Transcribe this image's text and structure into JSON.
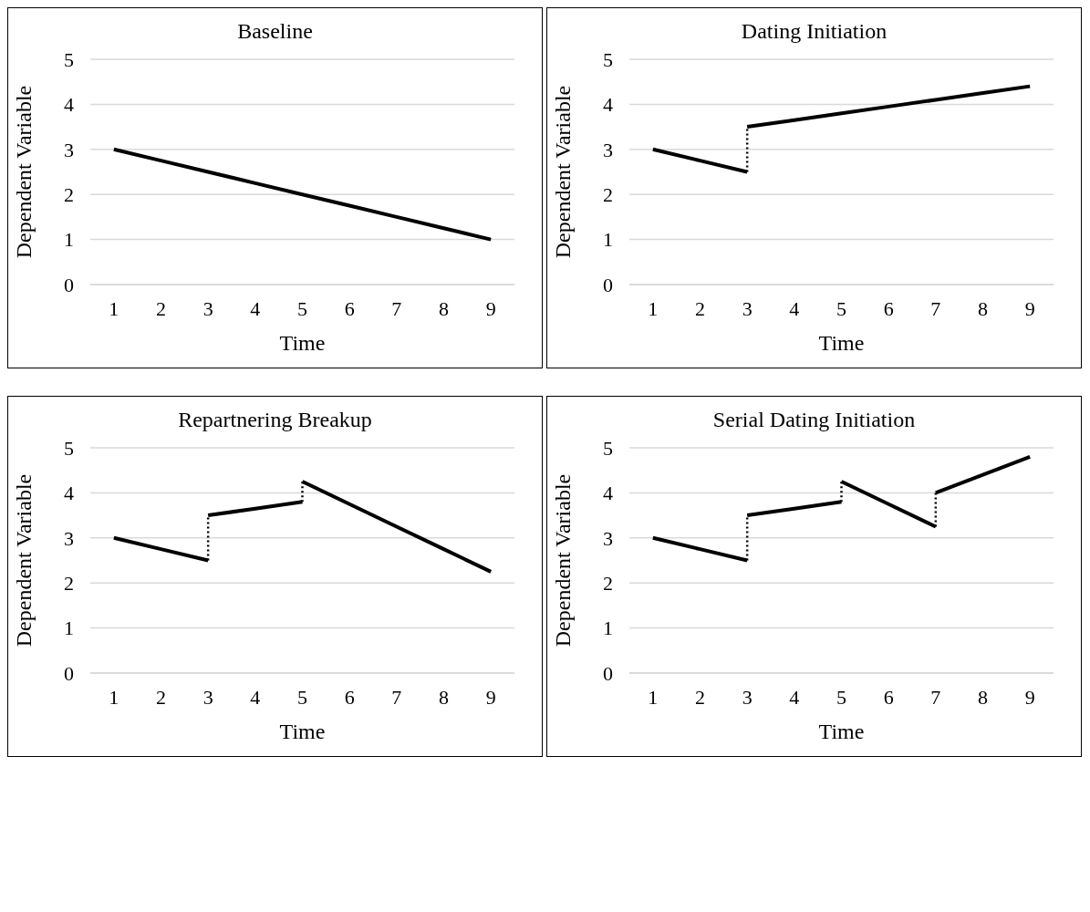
{
  "chart_data": [
    {
      "type": "line",
      "title": "Baseline",
      "xlabel": "Time",
      "ylabel": "Dependent Variable",
      "xlim": [
        0.5,
        9.5
      ],
      "xticks": [
        1,
        2,
        3,
        4,
        5,
        6,
        7,
        8,
        9
      ],
      "ylim": [
        0,
        5
      ],
      "yticks": [
        0,
        1,
        2,
        3,
        4,
        5
      ],
      "grid": "y",
      "series": [
        {
          "color": "#000000",
          "line_style": "solid",
          "x": [
            1,
            2,
            3,
            4,
            5,
            6,
            7,
            8,
            9
          ],
          "values": [
            3,
            2.75,
            2.5,
            2.25,
            2,
            1.75,
            1.5,
            1.25,
            1
          ]
        }
      ]
    },
    {
      "type": "line",
      "title": "Dating Initiation",
      "xlabel": "Time",
      "ylabel": "Dependent Variable",
      "xlim": [
        0.5,
        9.5
      ],
      "xticks": [
        1,
        2,
        3,
        4,
        5,
        6,
        7,
        8,
        9
      ],
      "ylim": [
        0,
        5
      ],
      "yticks": [
        0,
        1,
        2,
        3,
        4,
        5
      ],
      "grid": "y",
      "series": [
        {
          "color": "#000000",
          "line_style": "solid",
          "x": [
            1,
            2,
            3
          ],
          "values": [
            3,
            2.75,
            2.5
          ]
        },
        {
          "color": "#000000",
          "line_style": "dotted",
          "x": [
            3,
            3
          ],
          "values": [
            2.5,
            3.5
          ]
        },
        {
          "color": "#000000",
          "line_style": "solid",
          "x": [
            3,
            4,
            5,
            6,
            7,
            8,
            9
          ],
          "values": [
            3.5,
            3.65,
            3.8,
            3.95,
            4.1,
            4.25,
            4.4
          ]
        }
      ]
    },
    {
      "type": "line",
      "title": "Repartnering Breakup",
      "xlabel": "Time",
      "ylabel": "Dependent Variable",
      "xlim": [
        0.5,
        9.5
      ],
      "xticks": [
        1,
        2,
        3,
        4,
        5,
        6,
        7,
        8,
        9
      ],
      "ylim": [
        0,
        5
      ],
      "yticks": [
        0,
        1,
        2,
        3,
        4,
        5
      ],
      "grid": "y",
      "series": [
        {
          "color": "#000000",
          "line_style": "solid",
          "x": [
            1,
            2,
            3
          ],
          "values": [
            3,
            2.75,
            2.5
          ]
        },
        {
          "color": "#000000",
          "line_style": "dotted",
          "x": [
            3,
            3
          ],
          "values": [
            2.5,
            3.5
          ]
        },
        {
          "color": "#000000",
          "line_style": "solid",
          "x": [
            3,
            4,
            5
          ],
          "values": [
            3.5,
            3.65,
            3.8
          ]
        },
        {
          "color": "#000000",
          "line_style": "dotted",
          "x": [
            5,
            5
          ],
          "values": [
            3.8,
            4.25
          ]
        },
        {
          "color": "#000000",
          "line_style": "solid",
          "x": [
            5,
            6,
            7,
            8,
            9
          ],
          "values": [
            4.25,
            3.75,
            3.25,
            2.75,
            2.25
          ]
        }
      ]
    },
    {
      "type": "line",
      "title": "Serial Dating Initiation",
      "xlabel": "Time",
      "ylabel": "Dependent Variable",
      "xlim": [
        0.5,
        9.5
      ],
      "xticks": [
        1,
        2,
        3,
        4,
        5,
        6,
        7,
        8,
        9
      ],
      "ylim": [
        0,
        5
      ],
      "yticks": [
        0,
        1,
        2,
        3,
        4,
        5
      ],
      "grid": "y",
      "series": [
        {
          "color": "#000000",
          "line_style": "solid",
          "x": [
            1,
            2,
            3
          ],
          "values": [
            3,
            2.75,
            2.5
          ]
        },
        {
          "color": "#000000",
          "line_style": "dotted",
          "x": [
            3,
            3
          ],
          "values": [
            2.5,
            3.5
          ]
        },
        {
          "color": "#000000",
          "line_style": "solid",
          "x": [
            3,
            4,
            5
          ],
          "values": [
            3.5,
            3.65,
            3.8
          ]
        },
        {
          "color": "#000000",
          "line_style": "dotted",
          "x": [
            5,
            5
          ],
          "values": [
            3.8,
            4.25
          ]
        },
        {
          "color": "#000000",
          "line_style": "solid",
          "x": [
            5,
            6,
            7
          ],
          "values": [
            4.25,
            3.75,
            3.25
          ]
        },
        {
          "color": "#000000",
          "line_style": "dotted",
          "x": [
            7,
            7
          ],
          "values": [
            3.25,
            4
          ]
        },
        {
          "color": "#000000",
          "line_style": "solid",
          "x": [
            7,
            8,
            9
          ],
          "values": [
            4,
            4.4,
            4.8
          ]
        }
      ]
    }
  ]
}
